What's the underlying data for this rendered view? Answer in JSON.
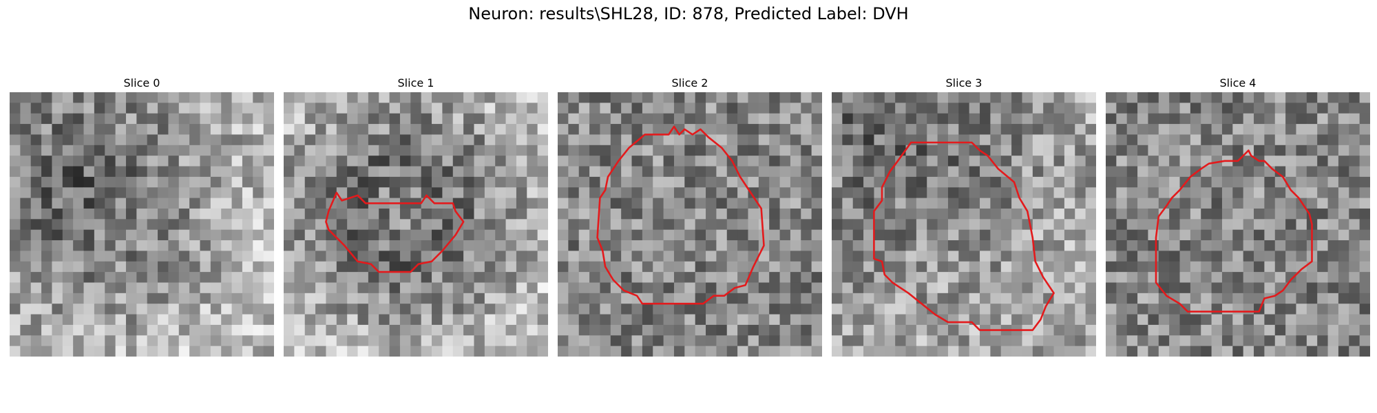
{
  "figure": {
    "title": "Neuron: results\\SHL28, ID: 878, Predicted Label: DVH",
    "outline_color": "#e31a1c",
    "colormap": "gray"
  },
  "panels": [
    {
      "title": "Slice 0",
      "seed": 11,
      "shading": "dark upper-left region",
      "outline": []
    },
    {
      "title": "Slice 1",
      "seed": 23,
      "shading": "dark central ring",
      "outline": [
        [
          0.2,
          0.38
        ],
        [
          0.22,
          0.41
        ],
        [
          0.28,
          0.39
        ],
        [
          0.31,
          0.42
        ],
        [
          0.52,
          0.42
        ],
        [
          0.54,
          0.39
        ],
        [
          0.57,
          0.42
        ],
        [
          0.64,
          0.42
        ],
        [
          0.65,
          0.45
        ],
        [
          0.68,
          0.49
        ],
        [
          0.65,
          0.54
        ],
        [
          0.6,
          0.6
        ],
        [
          0.56,
          0.64
        ],
        [
          0.51,
          0.65
        ],
        [
          0.48,
          0.68
        ],
        [
          0.36,
          0.68
        ],
        [
          0.33,
          0.65
        ],
        [
          0.28,
          0.64
        ],
        [
          0.23,
          0.58
        ],
        [
          0.17,
          0.52
        ],
        [
          0.16,
          0.49
        ],
        [
          0.17,
          0.45
        ]
      ]
    },
    {
      "title": "Slice 2",
      "seed": 37,
      "shading": "mixed",
      "outline": [
        [
          0.33,
          0.16
        ],
        [
          0.42,
          0.16
        ],
        [
          0.44,
          0.13
        ],
        [
          0.46,
          0.16
        ],
        [
          0.48,
          0.14
        ],
        [
          0.51,
          0.16
        ],
        [
          0.54,
          0.14
        ],
        [
          0.57,
          0.17
        ],
        [
          0.62,
          0.21
        ],
        [
          0.66,
          0.26
        ],
        [
          0.69,
          0.32
        ],
        [
          0.73,
          0.38
        ],
        [
          0.77,
          0.44
        ],
        [
          0.78,
          0.58
        ],
        [
          0.74,
          0.66
        ],
        [
          0.71,
          0.73
        ],
        [
          0.67,
          0.74
        ],
        [
          0.63,
          0.77
        ],
        [
          0.59,
          0.77
        ],
        [
          0.55,
          0.8
        ],
        [
          0.32,
          0.8
        ],
        [
          0.3,
          0.77
        ],
        [
          0.25,
          0.75
        ],
        [
          0.21,
          0.71
        ],
        [
          0.18,
          0.66
        ],
        [
          0.17,
          0.6
        ],
        [
          0.15,
          0.55
        ],
        [
          0.16,
          0.4
        ],
        [
          0.18,
          0.37
        ],
        [
          0.19,
          0.32
        ],
        [
          0.23,
          0.26
        ],
        [
          0.27,
          0.21
        ]
      ]
    },
    {
      "title": "Slice 3",
      "seed": 51,
      "shading": "dark upper-left corner",
      "outline": [
        [
          0.3,
          0.19
        ],
        [
          0.53,
          0.19
        ],
        [
          0.56,
          0.22
        ],
        [
          0.59,
          0.24
        ],
        [
          0.63,
          0.29
        ],
        [
          0.69,
          0.34
        ],
        [
          0.71,
          0.4
        ],
        [
          0.74,
          0.45
        ],
        [
          0.76,
          0.55
        ],
        [
          0.77,
          0.64
        ],
        [
          0.8,
          0.7
        ],
        [
          0.84,
          0.76
        ],
        [
          0.81,
          0.81
        ],
        [
          0.79,
          0.86
        ],
        [
          0.76,
          0.9
        ],
        [
          0.56,
          0.9
        ],
        [
          0.53,
          0.87
        ],
        [
          0.44,
          0.87
        ],
        [
          0.39,
          0.84
        ],
        [
          0.34,
          0.8
        ],
        [
          0.29,
          0.76
        ],
        [
          0.23,
          0.72
        ],
        [
          0.2,
          0.69
        ],
        [
          0.19,
          0.64
        ],
        [
          0.16,
          0.63
        ],
        [
          0.16,
          0.45
        ],
        [
          0.19,
          0.41
        ],
        [
          0.19,
          0.36
        ],
        [
          0.22,
          0.3
        ],
        [
          0.25,
          0.26
        ]
      ]
    },
    {
      "title": "Slice 4",
      "seed": 67,
      "shading": "mixed",
      "outline": [
        [
          0.45,
          0.26
        ],
        [
          0.5,
          0.26
        ],
        [
          0.52,
          0.24
        ],
        [
          0.54,
          0.22
        ],
        [
          0.55,
          0.24
        ],
        [
          0.58,
          0.26
        ],
        [
          0.6,
          0.26
        ],
        [
          0.63,
          0.29
        ],
        [
          0.67,
          0.32
        ],
        [
          0.7,
          0.37
        ],
        [
          0.73,
          0.4
        ],
        [
          0.77,
          0.46
        ],
        [
          0.78,
          0.5
        ],
        [
          0.78,
          0.64
        ],
        [
          0.74,
          0.67
        ],
        [
          0.7,
          0.71
        ],
        [
          0.67,
          0.75
        ],
        [
          0.64,
          0.77
        ],
        [
          0.6,
          0.78
        ],
        [
          0.58,
          0.83
        ],
        [
          0.31,
          0.83
        ],
        [
          0.28,
          0.8
        ],
        [
          0.23,
          0.77
        ],
        [
          0.19,
          0.72
        ],
        [
          0.19,
          0.55
        ],
        [
          0.2,
          0.47
        ],
        [
          0.23,
          0.43
        ],
        [
          0.25,
          0.4
        ],
        [
          0.28,
          0.37
        ],
        [
          0.32,
          0.32
        ],
        [
          0.36,
          0.29
        ],
        [
          0.39,
          0.27
        ]
      ]
    }
  ]
}
